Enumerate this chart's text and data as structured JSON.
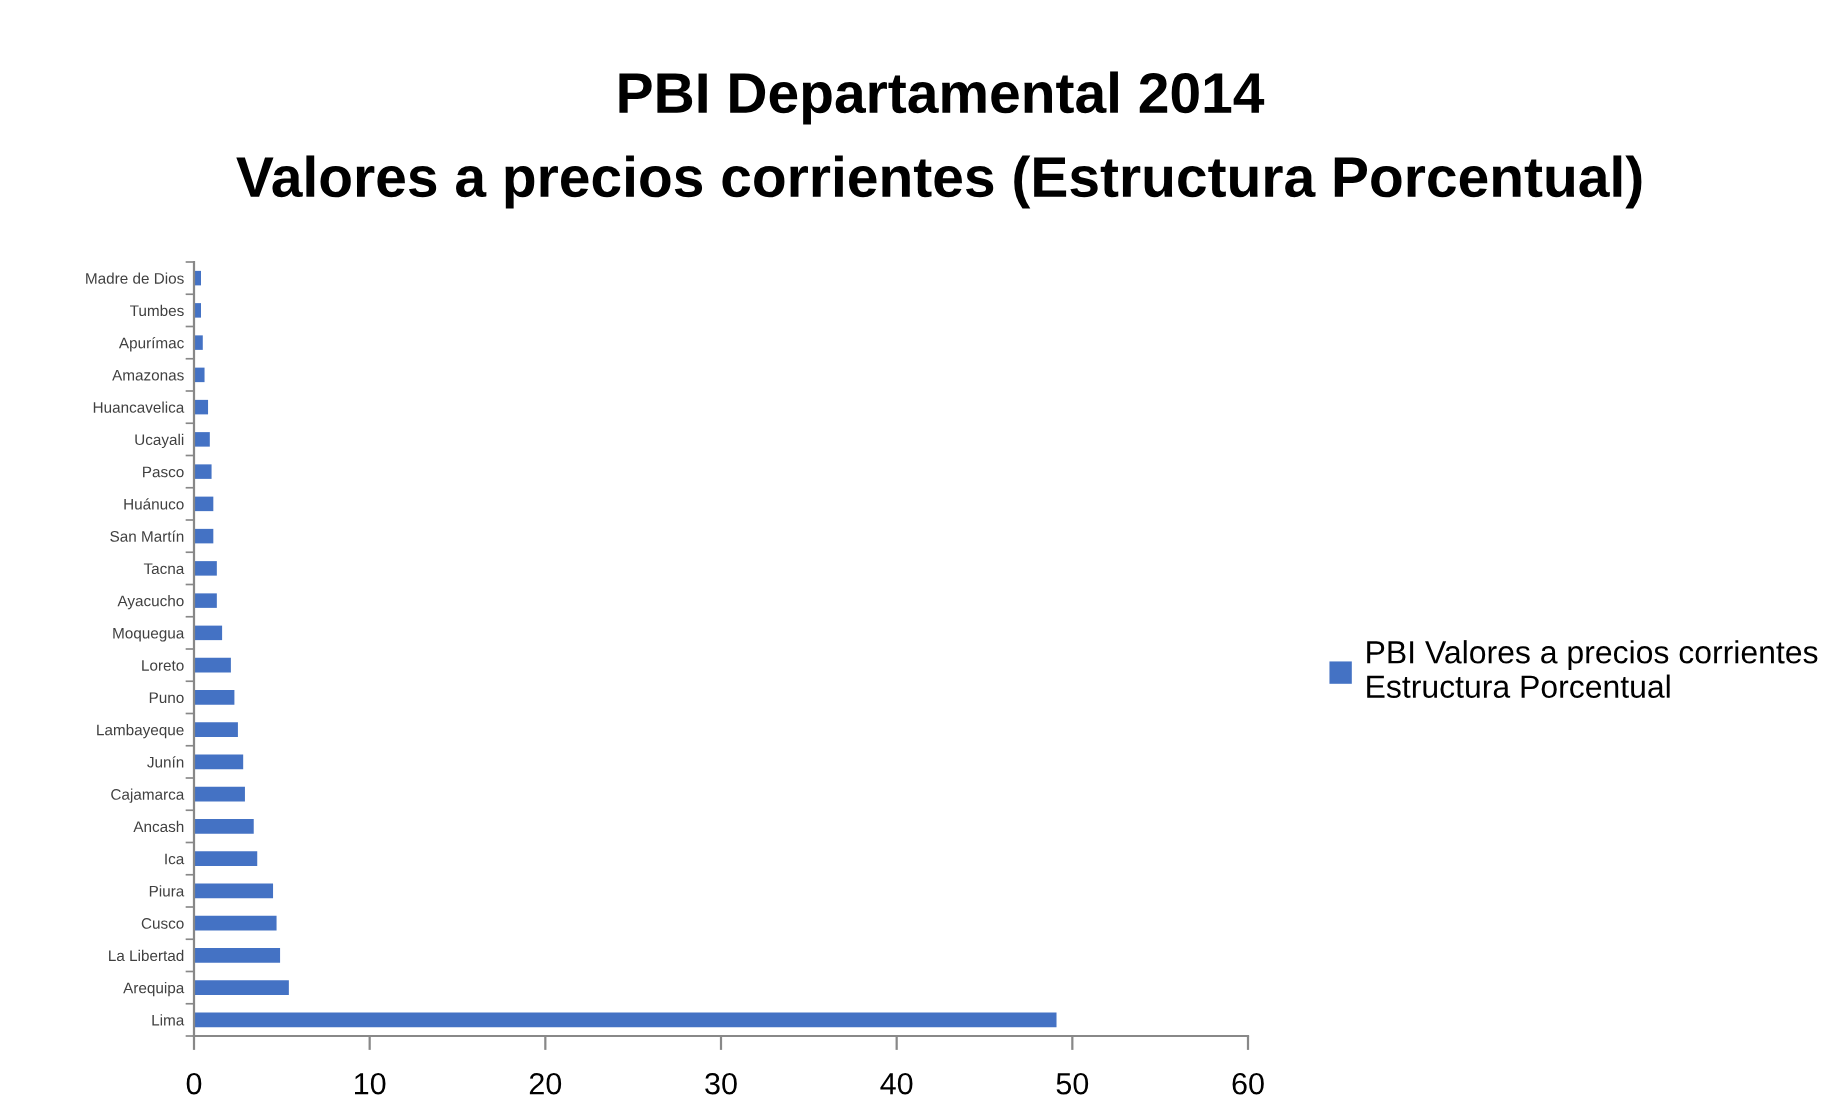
{
  "chart_data": {
    "type": "bar",
    "orientation": "horizontal",
    "title": "PBI Departamental 2014",
    "subtitle": "Valores a precios corrientes (Estructura Porcentual)",
    "categories": [
      "Madre de Dios",
      "Tumbes",
      "Apurímac",
      "Amazonas",
      "Huancavelica",
      "Ucayali",
      "Pasco",
      "Huánuco",
      "San Martín",
      "Tacna",
      "Ayacucho",
      "Moquegua",
      "Loreto",
      "Puno",
      "Lambayeque",
      "Junín",
      "Cajamarca",
      "Ancash",
      "Ica",
      "Piura",
      "Cusco",
      "La Libertad",
      "Arequipa",
      "Lima"
    ],
    "series": [
      {
        "name": "PBI Valores a precios corrientes\nEstructura Porcentual",
        "color": "#4472c4",
        "values": [
          0.4,
          0.4,
          0.5,
          0.6,
          0.8,
          0.9,
          1.0,
          1.1,
          1.1,
          1.3,
          1.3,
          1.6,
          2.1,
          2.3,
          2.5,
          2.8,
          2.9,
          3.4,
          3.6,
          4.5,
          4.7,
          4.9,
          5.4,
          49.1
        ]
      }
    ],
    "xlim": [
      0,
      60
    ],
    "xticks": [
      0,
      10,
      20,
      30,
      40,
      50,
      60
    ],
    "grid": false,
    "legend": "right"
  }
}
